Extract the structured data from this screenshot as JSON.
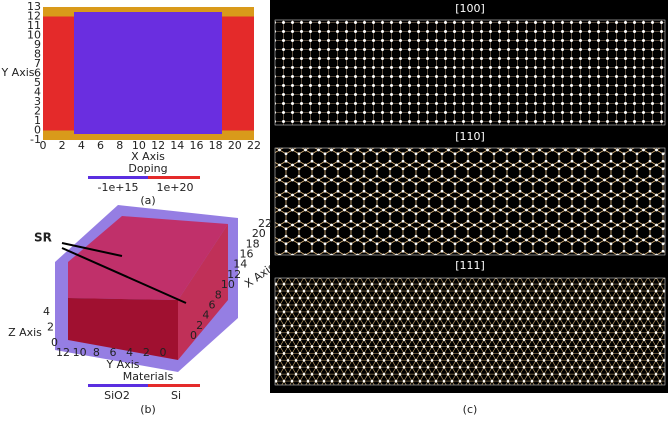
{
  "panel_a": {
    "x_label": "X Axis",
    "y_label": "Y Axis",
    "x_ticks": [
      0,
      2,
      4,
      6,
      8,
      10,
      12,
      14,
      16,
      18,
      20,
      22
    ],
    "y_ticks": [
      -1,
      0,
      1,
      2,
      3,
      4,
      5,
      6,
      7,
      8,
      9,
      10,
      11,
      12,
      13
    ],
    "legend_title": "Doping",
    "legend_labels": [
      "-1e+15",
      "1e+20"
    ],
    "caption": "(a)"
  },
  "panel_b": {
    "annotation": "SR",
    "x_label": "X Axis",
    "y_label": "Y Axis",
    "z_label": "Z Axis",
    "x_ticks": [
      0,
      2,
      4,
      6,
      8,
      10,
      12,
      14,
      16,
      18,
      20,
      22
    ],
    "y_ticks": [
      12,
      10,
      8,
      6,
      4,
      2,
      0
    ],
    "z_ticks": [
      0,
      2,
      4
    ],
    "legend_title": "Materials",
    "legend_labels": [
      "SiO2",
      "Si"
    ],
    "caption": "(b)"
  },
  "panel_c": {
    "titles": [
      "[100]",
      "[110]",
      "[111]"
    ],
    "caption": "(c)"
  }
}
